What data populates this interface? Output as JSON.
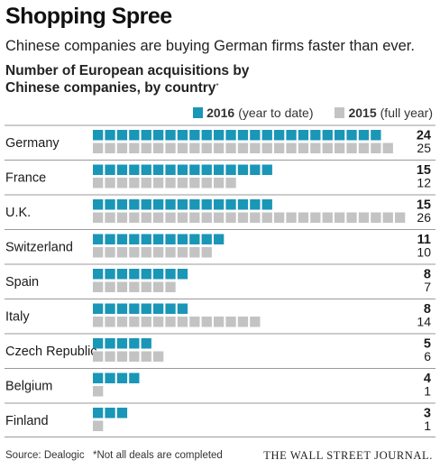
{
  "header": {
    "title": "Shopping Spree",
    "subtitle": "Chinese companies are buying German firms faster than ever.",
    "chart_heading_line1": "Number of European acquisitions by",
    "chart_heading_line2": "Chinese companies, by country",
    "chart_heading_mark": "*"
  },
  "legend": {
    "a_year": "2016",
    "a_rest": "(year to date)",
    "b_year": "2015",
    "b_rest": "(full year)"
  },
  "colors": {
    "series_2016": "#1a96b7",
    "series_2015": "#c3c3c3",
    "divider": "#9a9a9a"
  },
  "chart_data": {
    "type": "bar",
    "title": "Number of European acquisitions by Chinese companies, by country*",
    "categories": [
      "Germany",
      "France",
      "U.K.",
      "Switzerland",
      "Spain",
      "Italy",
      "Czech Republic",
      "Belgium",
      "Finland"
    ],
    "series": [
      {
        "name": "2016 (year to date)",
        "values": [
          24,
          15,
          15,
          11,
          8,
          8,
          5,
          4,
          3
        ]
      },
      {
        "name": "2015 (full year)",
        "values": [
          25,
          12,
          26,
          10,
          7,
          14,
          6,
          1,
          1
        ]
      }
    ],
    "unit_per_square": 1,
    "legend_position": "top-right",
    "grid": false
  },
  "footer": {
    "source": "Source: Dealogic",
    "note": "*Not all deals are completed",
    "brand": "THE WALL STREET JOURNAL."
  }
}
